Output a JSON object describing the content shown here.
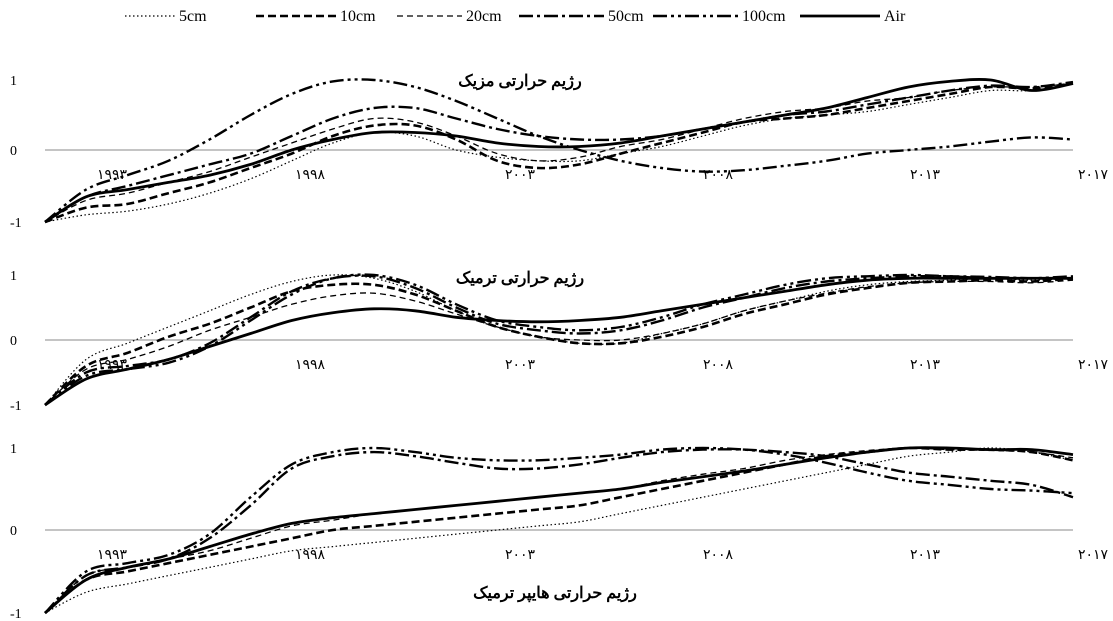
{
  "chart_data": [
    {
      "type": "line",
      "title": "رژیم حرارتی مزیک",
      "x_tick_labels": [
        "۱۹۹۳",
        "۱۹۹۸",
        "۲۰۰۳",
        "۲۰۰۸",
        "۲۰۱۳",
        "۲۰۱۷"
      ],
      "y_tick_labels": [
        "1",
        "0",
        "-1"
      ],
      "xlim": [
        1992,
        2017
      ],
      "ylim": [
        -1,
        1
      ],
      "legend_position": "top",
      "x": [
        1992,
        1993,
        1994,
        1995,
        1996,
        1997,
        1998,
        1999,
        2000,
        2001,
        2002,
        2003,
        2004,
        2005,
        2006,
        2007,
        2008,
        2009,
        2010,
        2011,
        2012,
        2013,
        2014,
        2015,
        2016,
        2017
      ],
      "series": [
        {
          "name": "5cm",
          "values": [
            -1,
            -0.9,
            -0.85,
            -0.75,
            -0.6,
            -0.4,
            -0.15,
            0.1,
            0.25,
            0.2,
            0.0,
            -0.1,
            -0.15,
            -0.15,
            -0.05,
            0.05,
            0.2,
            0.35,
            0.45,
            0.5,
            0.55,
            0.65,
            0.75,
            0.85,
            0.85,
            0.95
          ]
        },
        {
          "name": "10cm",
          "values": [
            -1,
            -0.8,
            -0.75,
            -0.6,
            -0.45,
            -0.25,
            -0.05,
            0.2,
            0.35,
            0.35,
            0.15,
            -0.15,
            -0.25,
            -0.2,
            -0.05,
            0.1,
            0.25,
            0.4,
            0.45,
            0.5,
            0.6,
            0.7,
            0.8,
            0.9,
            0.88,
            0.95
          ]
        },
        {
          "name": "20cm",
          "values": [
            -1,
            -0.7,
            -0.6,
            -0.45,
            -0.3,
            -0.1,
            0.1,
            0.3,
            0.45,
            0.4,
            0.2,
            -0.05,
            -0.15,
            -0.1,
            0.05,
            0.15,
            0.3,
            0.45,
            0.55,
            0.6,
            0.7,
            0.75,
            0.85,
            0.9,
            0.9,
            0.95
          ]
        },
        {
          "name": "50cm",
          "values": [
            -1,
            -0.65,
            -0.5,
            -0.35,
            -0.2,
            -0.05,
            0.2,
            0.45,
            0.6,
            0.6,
            0.45,
            0.3,
            0.2,
            0.15,
            0.15,
            0.2,
            0.3,
            0.4,
            0.5,
            0.55,
            0.65,
            0.75,
            0.85,
            0.92,
            0.9,
            0.97
          ]
        },
        {
          "name": "100cm",
          "values": [
            -1,
            -0.55,
            -0.35,
            -0.15,
            0.15,
            0.5,
            0.8,
            0.98,
            1.0,
            0.9,
            0.7,
            0.45,
            0.2,
            0.0,
            -0.15,
            -0.25,
            -0.3,
            -0.28,
            -0.22,
            -0.15,
            -0.05,
            0.0,
            0.05,
            0.12,
            0.18,
            0.15
          ]
        },
        {
          "name": "Air",
          "values": [
            -1,
            -0.65,
            -0.55,
            -0.45,
            -0.35,
            -0.2,
            0.0,
            0.15,
            0.25,
            0.25,
            0.2,
            0.1,
            0.05,
            0.05,
            0.1,
            0.2,
            0.3,
            0.4,
            0.5,
            0.6,
            0.75,
            0.9,
            0.98,
            1.0,
            0.85,
            0.95
          ]
        }
      ]
    },
    {
      "type": "line",
      "title": "رژیم حرارتی ترمیک",
      "x_tick_labels": [
        "۱۹۹۳",
        "۱۹۹۸",
        "۲۰۰۳",
        "۲۰۰۸",
        "۲۰۱۳",
        "۲۰۱۷"
      ],
      "y_tick_labels": [
        "1",
        "0",
        "-1"
      ],
      "xlim": [
        1992,
        2017
      ],
      "ylim": [
        -1,
        1
      ],
      "x": [
        1992,
        1993,
        1994,
        1995,
        1996,
        1997,
        1998,
        1999,
        2000,
        2001,
        2002,
        2003,
        2004,
        2005,
        2006,
        2007,
        2008,
        2009,
        2010,
        2011,
        2012,
        2013,
        2014,
        2015,
        2016,
        2017
      ],
      "series": [
        {
          "name": "5cm",
          "values": [
            -1,
            -0.3,
            -0.05,
            0.2,
            0.45,
            0.7,
            0.9,
            1.0,
            0.95,
            0.75,
            0.45,
            0.2,
            0.05,
            -0.05,
            -0.05,
            0.1,
            0.25,
            0.45,
            0.6,
            0.75,
            0.85,
            0.9,
            0.92,
            0.95,
            0.92,
            0.95
          ]
        },
        {
          "name": "10cm",
          "values": [
            -1,
            -0.4,
            -0.2,
            0.05,
            0.25,
            0.5,
            0.75,
            0.85,
            0.85,
            0.7,
            0.45,
            0.2,
            0.05,
            -0.05,
            -0.05,
            0.05,
            0.2,
            0.4,
            0.55,
            0.7,
            0.8,
            0.88,
            0.9,
            0.92,
            0.9,
            0.95
          ]
        },
        {
          "name": "20cm",
          "values": [
            -1,
            -0.45,
            -0.3,
            -0.1,
            0.15,
            0.35,
            0.55,
            0.68,
            0.72,
            0.6,
            0.4,
            0.2,
            0.05,
            0.0,
            0.0,
            0.1,
            0.25,
            0.45,
            0.6,
            0.72,
            0.82,
            0.88,
            0.9,
            0.9,
            0.88,
            0.92
          ]
        },
        {
          "name": "50cm",
          "values": [
            -1,
            -0.5,
            -0.4,
            -0.3,
            -0.05,
            0.35,
            0.75,
            0.95,
            0.98,
            0.8,
            0.5,
            0.25,
            0.15,
            0.1,
            0.15,
            0.3,
            0.5,
            0.65,
            0.8,
            0.9,
            0.95,
            0.98,
            0.98,
            0.97,
            0.95,
            0.95
          ]
        },
        {
          "name": "100cm",
          "values": [
            -1,
            -0.55,
            -0.45,
            -0.35,
            -0.1,
            0.3,
            0.7,
            0.95,
            1.0,
            0.85,
            0.55,
            0.3,
            0.2,
            0.15,
            0.2,
            0.35,
            0.55,
            0.7,
            0.85,
            0.95,
            0.98,
            1.0,
            0.98,
            0.95,
            0.95,
            0.98
          ]
        },
        {
          "name": "Air",
          "values": [
            -1,
            -0.6,
            -0.45,
            -0.3,
            -0.1,
            0.1,
            0.3,
            0.42,
            0.48,
            0.45,
            0.35,
            0.3,
            0.28,
            0.3,
            0.35,
            0.45,
            0.55,
            0.65,
            0.75,
            0.85,
            0.92,
            0.95,
            0.95,
            0.95,
            0.95,
            0.95
          ]
        }
      ]
    },
    {
      "type": "line",
      "title": "رژیم حرارتی هایپر ترمیک",
      "x_tick_labels": [
        "۱۹۹۳",
        "۱۹۹۸",
        "۲۰۰۳",
        "۲۰۰۸",
        "۲۰۱۳",
        "۲۰۱۷"
      ],
      "y_tick_labels": [
        "1",
        "0",
        "-1"
      ],
      "xlim": [
        1992,
        2017
      ],
      "ylim": [
        -1,
        1
      ],
      "x": [
        1992,
        1993,
        1994,
        1995,
        1996,
        1997,
        1998,
        1999,
        2000,
        2001,
        2002,
        2003,
        2004,
        2005,
        2006,
        2007,
        2008,
        2009,
        2010,
        2011,
        2012,
        2013,
        2014,
        2015,
        2016,
        2017
      ],
      "series": [
        {
          "name": "5cm",
          "values": [
            -1,
            -0.75,
            -0.65,
            -0.55,
            -0.45,
            -0.35,
            -0.25,
            -0.2,
            -0.15,
            -0.1,
            -0.05,
            0.0,
            0.05,
            0.1,
            0.2,
            0.3,
            0.4,
            0.5,
            0.6,
            0.7,
            0.8,
            0.9,
            0.95,
            1.0,
            0.95,
            0.85
          ]
        },
        {
          "name": "10cm",
          "values": [
            -1,
            -0.6,
            -0.5,
            -0.4,
            -0.3,
            -0.2,
            -0.1,
            0.0,
            0.05,
            0.1,
            0.15,
            0.2,
            0.25,
            0.3,
            0.4,
            0.5,
            0.6,
            0.7,
            0.8,
            0.9,
            0.95,
            1.0,
            0.98,
            0.98,
            0.95,
            0.85
          ]
        },
        {
          "name": "20cm",
          "values": [
            -1,
            -0.55,
            -0.45,
            -0.35,
            -0.25,
            -0.1,
            0.05,
            0.12,
            0.2,
            0.25,
            0.3,
            0.35,
            0.4,
            0.45,
            0.5,
            0.6,
            0.68,
            0.75,
            0.85,
            0.92,
            0.97,
            1.0,
            0.98,
            0.97,
            0.95,
            0.88
          ]
        },
        {
          "name": "50cm",
          "values": [
            -1,
            -0.55,
            -0.45,
            -0.35,
            -0.1,
            0.3,
            0.75,
            0.9,
            0.95,
            0.9,
            0.82,
            0.75,
            0.75,
            0.8,
            0.88,
            0.95,
            0.98,
            0.98,
            0.95,
            0.9,
            0.8,
            0.7,
            0.65,
            0.6,
            0.55,
            0.4
          ]
        },
        {
          "name": "100cm",
          "values": [
            -1,
            -0.5,
            -0.4,
            -0.3,
            -0.05,
            0.4,
            0.8,
            0.95,
            1.0,
            0.95,
            0.88,
            0.85,
            0.85,
            0.88,
            0.92,
            0.98,
            1.0,
            0.98,
            0.92,
            0.82,
            0.7,
            0.6,
            0.55,
            0.5,
            0.48,
            0.45
          ]
        },
        {
          "name": "Air",
          "values": [
            -1,
            -0.6,
            -0.45,
            -0.35,
            -0.2,
            -0.05,
            0.08,
            0.15,
            0.2,
            0.25,
            0.3,
            0.35,
            0.4,
            0.45,
            0.5,
            0.58,
            0.65,
            0.72,
            0.8,
            0.88,
            0.95,
            1.0,
            1.0,
            0.98,
            0.98,
            0.92
          ]
        }
      ]
    }
  ]
}
